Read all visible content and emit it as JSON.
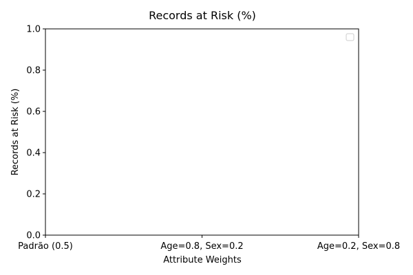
{
  "chart_data": {
    "type": "line",
    "title": "Records at Risk (%)",
    "xlabel": "Attribute Weights",
    "ylabel": "Records at Risk (%)",
    "categories": [
      "Padrão (0.5)",
      "Age=0.8, Sex=0.2",
      "Age=0.2, Sex=0.8"
    ],
    "ylim": [
      0.0,
      1.0
    ],
    "yticks": [
      "0.0",
      "0.2",
      "0.4",
      "0.6",
      "0.8",
      "1.0"
    ],
    "series": [],
    "grid": false,
    "legend": "top-right",
    "colors": {
      "axis": "#000000",
      "background": "#ffffff",
      "legend_border": "#cccccc"
    }
  }
}
